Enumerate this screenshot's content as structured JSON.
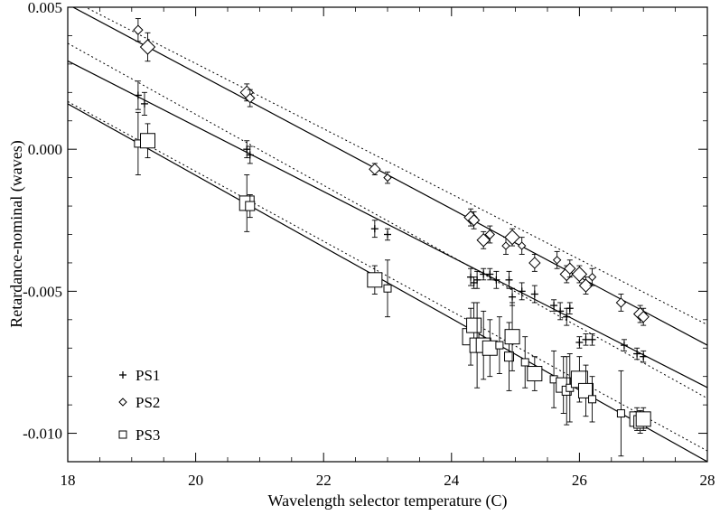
{
  "chart_data": {
    "type": "scatter",
    "title": "",
    "xlabel": "Wavelength selector temperature (C)",
    "ylabel": "Retardance-nominal (waves)",
    "xlim": [
      18,
      28
    ],
    "ylim": [
      -0.011,
      0.005
    ],
    "x_ticks": [
      18,
      20,
      22,
      24,
      26,
      28
    ],
    "x_tick_labels": [
      "18",
      "20",
      "22",
      "24",
      "26",
      "28"
    ],
    "y_ticks": [
      -0.01,
      -0.005,
      0.0,
      0.005
    ],
    "y_tick_labels": [
      "-0.010",
      "-0.005",
      "0.000",
      "0.005"
    ],
    "grid": false,
    "legend_position": "bottom-left",
    "series": [
      {
        "name": "PS1",
        "marker": "plus",
        "fit_line": {
          "slope": -0.00115,
          "intercept": 0.02381
        },
        "dotted_line": {
          "slope": -0.00125,
          "intercept": 0.02623
        },
        "points": [
          {
            "x": 19.1,
            "y": 0.0019,
            "err": 0.0005
          },
          {
            "x": 19.2,
            "y": 0.0016,
            "err": 0.0004
          },
          {
            "x": 20.8,
            "y": 0.0,
            "err": 0.0003
          },
          {
            "x": 20.85,
            "y": -0.0002,
            "err": 0.0003
          },
          {
            "x": 22.8,
            "y": -0.0028,
            "err": 0.0003
          },
          {
            "x": 23.0,
            "y": -0.003,
            "err": 0.0002
          },
          {
            "x": 24.3,
            "y": -0.0045,
            "err": 0.0003
          },
          {
            "x": 24.35,
            "y": -0.0047,
            "err": 0.0002
          },
          {
            "x": 24.4,
            "y": -0.0046,
            "err": 0.0003
          },
          {
            "x": 24.5,
            "y": -0.0044,
            "err": 0.0002
          },
          {
            "x": 24.6,
            "y": -0.0044,
            "err": 0.0002
          },
          {
            "x": 24.7,
            "y": -0.0046,
            "err": 0.0003
          },
          {
            "x": 24.9,
            "y": -0.0046,
            "err": 0.0003
          },
          {
            "x": 24.95,
            "y": -0.0052,
            "err": 0.0003
          },
          {
            "x": 25.1,
            "y": -0.005,
            "err": 0.0003
          },
          {
            "x": 25.3,
            "y": -0.0051,
            "err": 0.0003
          },
          {
            "x": 25.6,
            "y": -0.0055,
            "err": 0.0002
          },
          {
            "x": 25.7,
            "y": -0.0057,
            "err": 0.0003
          },
          {
            "x": 25.8,
            "y": -0.0059,
            "err": 0.0003
          },
          {
            "x": 25.85,
            "y": -0.0056,
            "err": 0.0002
          },
          {
            "x": 26.0,
            "y": -0.0068,
            "err": 0.0002
          },
          {
            "x": 26.1,
            "y": -0.0067,
            "err": 0.0002
          },
          {
            "x": 26.2,
            "y": -0.0067,
            "err": 0.0002
          },
          {
            "x": 26.7,
            "y": -0.0069,
            "err": 0.0002
          },
          {
            "x": 26.9,
            "y": -0.0072,
            "err": 0.0002
          },
          {
            "x": 27.0,
            "y": -0.0073,
            "err": 0.0002
          }
        ]
      },
      {
        "name": "PS2",
        "marker": "diamond",
        "fit_line": {
          "slope": -0.0012,
          "intercept": 0.0267
        },
        "dotted_line": {
          "slope": -0.00115,
          "intercept": 0.02602
        },
        "points": [
          {
            "x": 19.1,
            "y": 0.0042,
            "err": 0.0004,
            "size": 5
          },
          {
            "x": 19.25,
            "y": 0.0036,
            "err": 0.0005,
            "size": 8
          },
          {
            "x": 20.8,
            "y": 0.002,
            "err": 0.0003,
            "size": 7
          },
          {
            "x": 20.85,
            "y": 0.0018,
            "err": 0.0003,
            "size": 5
          },
          {
            "x": 22.8,
            "y": -0.0007,
            "err": 0.0002,
            "size": 6
          },
          {
            "x": 23.0,
            "y": -0.001,
            "err": 0.0002,
            "size": 4
          },
          {
            "x": 24.3,
            "y": -0.0024,
            "err": 0.0003,
            "size": 7
          },
          {
            "x": 24.35,
            "y": -0.0025,
            "err": 0.0003,
            "size": 6
          },
          {
            "x": 24.5,
            "y": -0.0032,
            "err": 0.0003,
            "size": 7
          },
          {
            "x": 24.6,
            "y": -0.003,
            "err": 0.0003,
            "size": 5
          },
          {
            "x": 24.85,
            "y": -0.0034,
            "err": 0.0003,
            "size": 4
          },
          {
            "x": 24.95,
            "y": -0.0031,
            "err": 0.0003,
            "size": 8
          },
          {
            "x": 25.1,
            "y": -0.0034,
            "err": 0.0003,
            "size": 4
          },
          {
            "x": 25.3,
            "y": -0.004,
            "err": 0.0003,
            "size": 6
          },
          {
            "x": 25.65,
            "y": -0.0039,
            "err": 0.0003,
            "size": 4
          },
          {
            "x": 25.8,
            "y": -0.0044,
            "err": 0.0003,
            "size": 7
          },
          {
            "x": 25.85,
            "y": -0.0042,
            "err": 0.0003,
            "size": 6
          },
          {
            "x": 26.0,
            "y": -0.0044,
            "err": 0.0003,
            "size": 8
          },
          {
            "x": 26.1,
            "y": -0.0048,
            "err": 0.0003,
            "size": 7
          },
          {
            "x": 26.2,
            "y": -0.0045,
            "err": 0.0003,
            "size": 4
          },
          {
            "x": 26.65,
            "y": -0.0054,
            "err": 0.0003,
            "size": 5
          },
          {
            "x": 26.95,
            "y": -0.0058,
            "err": 0.0003,
            "size": 7
          },
          {
            "x": 27.0,
            "y": -0.0059,
            "err": 0.0003,
            "size": 6
          }
        ]
      },
      {
        "name": "PS3",
        "marker": "square",
        "fit_line": {
          "slope": -0.00126,
          "intercept": 0.02428
        },
        "dotted_line": {
          "slope": -0.00123,
          "intercept": 0.02382
        },
        "points": [
          {
            "x": 19.1,
            "y": 0.0002,
            "err": 0.0011,
            "size": 4
          },
          {
            "x": 19.25,
            "y": 0.0003,
            "err": 0.0006,
            "size": 8
          },
          {
            "x": 20.8,
            "y": -0.0019,
            "err": 0.001,
            "size": 8
          },
          {
            "x": 20.85,
            "y": -0.002,
            "err": 0.0004,
            "size": 5
          },
          {
            "x": 22.8,
            "y": -0.0046,
            "err": 0.0005,
            "size": 8
          },
          {
            "x": 23.0,
            "y": -0.0049,
            "err": 0.001,
            "size": 4
          },
          {
            "x": 24.3,
            "y": -0.0066,
            "err": 0.001,
            "size": 9
          },
          {
            "x": 24.35,
            "y": -0.0062,
            "err": 0.0008,
            "size": 8
          },
          {
            "x": 24.4,
            "y": -0.0069,
            "err": 0.0015,
            "size": 8
          },
          {
            "x": 24.5,
            "y": -0.0069,
            "err": 0.0012,
            "size": 8
          },
          {
            "x": 24.6,
            "y": -0.007,
            "err": 0.001,
            "size": 8
          },
          {
            "x": 24.75,
            "y": -0.0069,
            "err": 0.001,
            "size": 4
          },
          {
            "x": 24.9,
            "y": -0.0073,
            "err": 0.0012,
            "size": 5
          },
          {
            "x": 24.95,
            "y": -0.0066,
            "err": 0.0012,
            "size": 8
          },
          {
            "x": 25.15,
            "y": -0.0075,
            "err": 0.0009,
            "size": 4
          },
          {
            "x": 25.3,
            "y": -0.0079,
            "err": 0.0006,
            "size": 8
          },
          {
            "x": 25.6,
            "y": -0.0081,
            "err": 0.001,
            "size": 4
          },
          {
            "x": 25.75,
            "y": -0.0083,
            "err": 0.001,
            "size": 8
          },
          {
            "x": 25.8,
            "y": -0.0085,
            "err": 0.0012,
            "size": 5
          },
          {
            "x": 25.85,
            "y": -0.0084,
            "err": 0.0012,
            "size": 4
          },
          {
            "x": 26.0,
            "y": -0.0081,
            "err": 0.0008,
            "size": 9
          },
          {
            "x": 26.1,
            "y": -0.0085,
            "err": 0.0009,
            "size": 8
          },
          {
            "x": 26.2,
            "y": -0.0088,
            "err": 0.0008,
            "size": 4
          },
          {
            "x": 26.65,
            "y": -0.0093,
            "err": 0.0015,
            "size": 4
          },
          {
            "x": 26.9,
            "y": -0.0095,
            "err": 0.0004,
            "size": 8
          },
          {
            "x": 26.95,
            "y": -0.0096,
            "err": 0.0004,
            "size": 7
          },
          {
            "x": 27.0,
            "y": -0.0095,
            "err": 0.0004,
            "size": 8
          }
        ]
      }
    ]
  }
}
